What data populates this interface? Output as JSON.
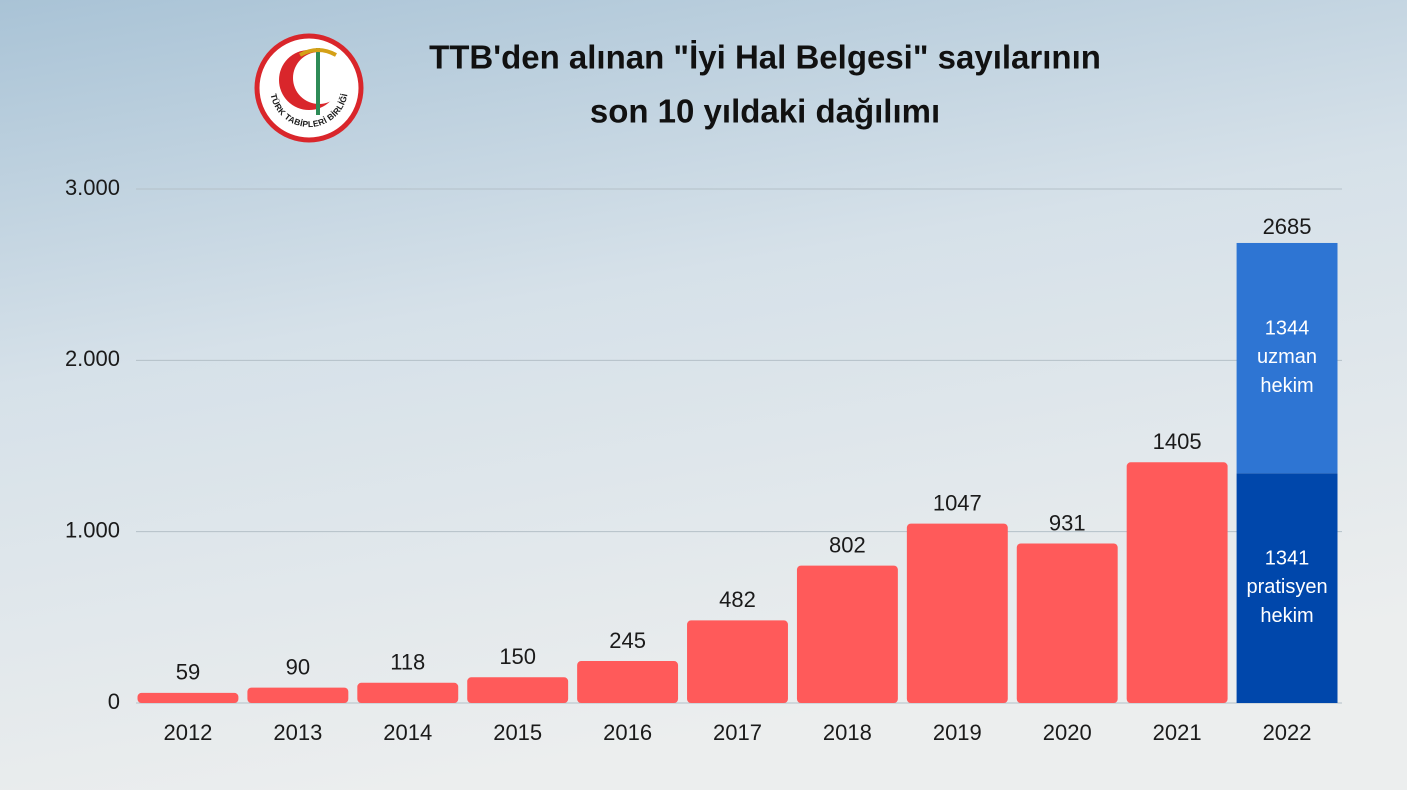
{
  "chart_data": {
    "type": "stacked-bar",
    "title": [
      "TTB'den alınan \"İyi Hal Belgesi\" sayılarının",
      "son 10 yıldaki dağılımı"
    ],
    "logo_text": "TÜRK TABİPLERİ BİRLİĞİ",
    "categories": [
      "2012",
      "2013",
      "2014",
      "2015",
      "2016",
      "2017",
      "2018",
      "2019",
      "2020",
      "2021",
      "2022"
    ],
    "series": [
      {
        "color": "#ff5a5a",
        "values": [
          59,
          90,
          118,
          150,
          245,
          482,
          802,
          1047,
          931,
          1405,
          null
        ]
      },
      {
        "name": "pratisyen hekim",
        "color": "#0047ab",
        "values": [
          null,
          null,
          null,
          null,
          null,
          null,
          null,
          null,
          null,
          null,
          1341
        ]
      },
      {
        "name": "uzman hekim",
        "color": "#2e75d3",
        "values": [
          null,
          null,
          null,
          null,
          null,
          null,
          null,
          null,
          null,
          null,
          1344
        ]
      }
    ],
    "totals": [
      null,
      null,
      null,
      null,
      null,
      null,
      null,
      null,
      null,
      null,
      2685
    ],
    "ylim": [
      0,
      3000
    ],
    "yticks": [
      0,
      {
        "value": 1000,
        "label": "1.000"
      },
      {
        "value": 2000,
        "label": "2.000"
      },
      {
        "value": 3000,
        "label": "3.000"
      }
    ],
    "grid": true
  }
}
